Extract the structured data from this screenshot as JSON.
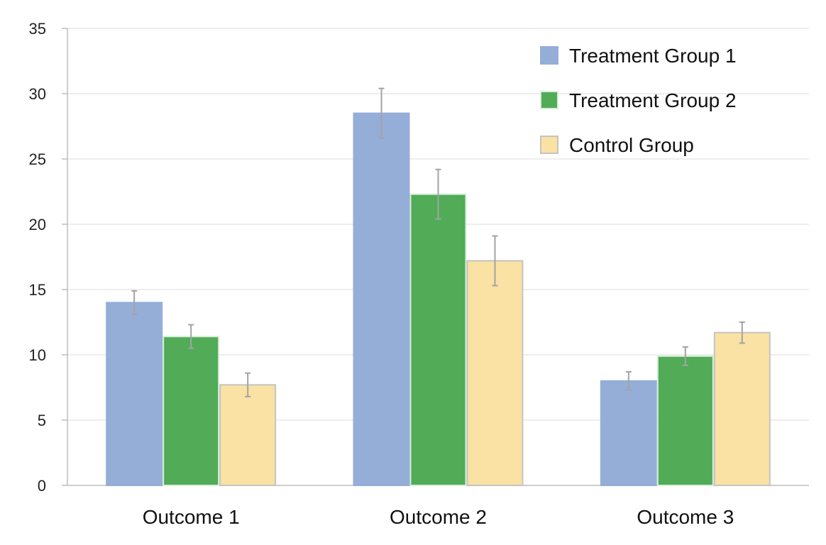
{
  "chart_data": {
    "type": "bar",
    "title": "",
    "xlabel": "",
    "ylabel": "",
    "ylim": [
      0,
      35
    ],
    "yticks": [
      0,
      5,
      10,
      15,
      20,
      25,
      30,
      35
    ],
    "grid": true,
    "legend_position": "top-right",
    "categories": [
      "Outcome 1",
      "Outcome 2",
      "Outcome 3"
    ],
    "series": [
      {
        "name": "Treatment Group 1",
        "color": "#94aed8",
        "stroke": "#94aed8",
        "values": [
          14.0,
          28.5,
          8.0
        ],
        "errors": [
          0.9,
          1.9,
          0.7
        ]
      },
      {
        "name": "Treatment Group 2",
        "color": "#51ab57",
        "stroke": "#d8eed9",
        "values": [
          11.4,
          22.3,
          9.9
        ],
        "errors": [
          0.9,
          1.9,
          0.7
        ]
      },
      {
        "name": "Control Group",
        "color": "#f9e2a3",
        "stroke": "#c4c4c4",
        "values": [
          7.7,
          17.2,
          11.7
        ],
        "errors": [
          0.9,
          1.9,
          0.8
        ]
      }
    ]
  }
}
